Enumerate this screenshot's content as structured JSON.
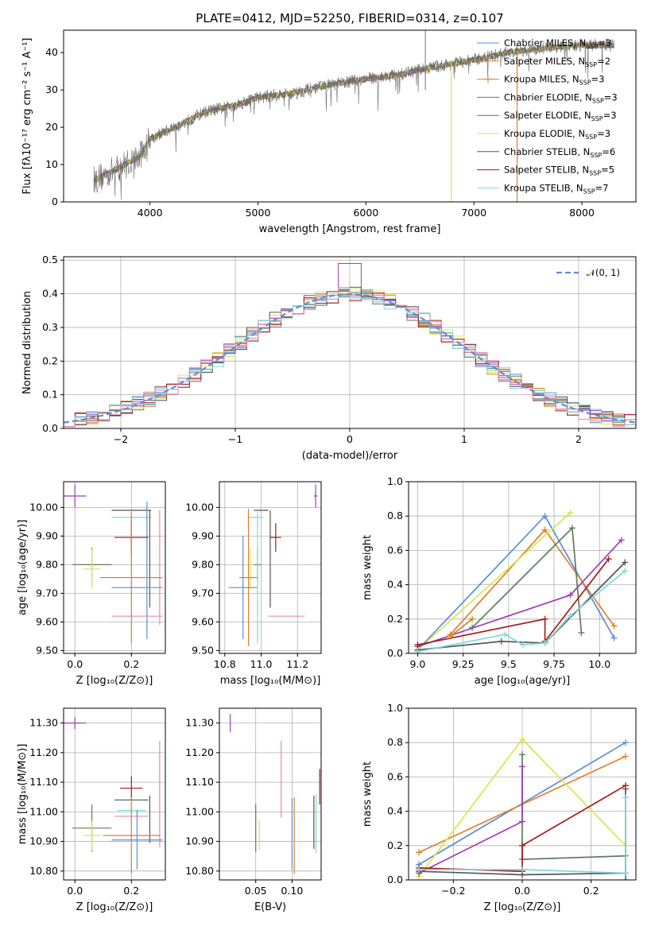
{
  "figure": {
    "title": "PLATE=0412, MJD=52250, FIBERID=0314, z=0.107"
  },
  "colors": {
    "Chabrier MILES": "#5b8ed6",
    "Salpeter MILES": "#e0802a",
    "Kroupa MILES": "#c8882e",
    "Chabrier ELODIE": "#5e7d5e",
    "Salpeter ELODIE": "#9b3fb5",
    "Kroupa ELODIE": "#d6e650",
    "Chabrier STELIB": "#555555",
    "Salpeter STELIB": "#a81c1c",
    "Kroupa STELIB": "#7fd8dc",
    "extra_pink": "#e887b5"
  },
  "chart_data": [
    {
      "id": "spectrum",
      "type": "line",
      "title": "PLATE=0412, MJD=52250, FIBERID=0314, z=0.107",
      "xlabel": "wavelength [Angstrom, rest frame]",
      "ylabel": "Flux [fλ10⁻¹⁷ erg cm⁻² s⁻¹ A⁻¹]",
      "xlim": [
        3200,
        8500
      ],
      "ylim": [
        0,
        46
      ],
      "xticks": [
        4000,
        5000,
        6000,
        7000,
        8000
      ],
      "yticks": [
        0,
        10,
        20,
        30,
        40
      ],
      "grid": false,
      "legend_position": "top-right",
      "legend": [
        {
          "label": "Chabrier MILES, N",
          "sub": "SSP",
          "tail": "=3",
          "color": "#5b8ed6",
          "marker": "none"
        },
        {
          "label": "Salpeter MILES, N",
          "sub": "SSP",
          "tail": "=2",
          "color": "#e0802a",
          "marker": "none"
        },
        {
          "label": "Kroupa MILES, N",
          "sub": "SSP",
          "tail": "=3",
          "color": "#c8882e",
          "marker": "plus"
        },
        {
          "label": "Chabrier ELODIE, N",
          "sub": "SSP",
          "tail": "=3",
          "color": "#5e7d5e",
          "marker": "none"
        },
        {
          "label": "Salpeter ELODIE, N",
          "sub": "SSP",
          "tail": "=3",
          "color": "#9b3fb5",
          "marker": "none"
        },
        {
          "label": "Kroupa ELODIE, N",
          "sub": "SSP",
          "tail": "=3",
          "color": "#d6e650",
          "marker": "none"
        },
        {
          "label": "Chabrier STELIB, N",
          "sub": "SSP",
          "tail": "=6",
          "color": "#555555",
          "marker": "none"
        },
        {
          "label": "Salpeter STELIB, N",
          "sub": "SSP",
          "tail": "=5",
          "color": "#a81c1c",
          "marker": "none"
        },
        {
          "label": "Kroupa STELIB, N",
          "sub": "SSP",
          "tail": "=7",
          "color": "#7fd8dc",
          "marker": "none"
        }
      ],
      "continuum": [
        [
          3500,
          6
        ],
        [
          3700,
          9
        ],
        [
          3900,
          12
        ],
        [
          4000,
          17
        ],
        [
          4300,
          21
        ],
        [
          4500,
          24
        ],
        [
          4800,
          26
        ],
        [
          5000,
          28
        ],
        [
          5300,
          29
        ],
        [
          5600,
          31
        ],
        [
          6000,
          33
        ],
        [
          6300,
          34
        ],
        [
          6600,
          36
        ],
        [
          7000,
          38
        ],
        [
          7300,
          40
        ],
        [
          7600,
          41
        ],
        [
          8000,
          42
        ],
        [
          8300,
          42
        ]
      ],
      "spectrum_range": [
        3480,
        8300
      ],
      "spikes": [
        {
          "x": 6790,
          "y_low": 0,
          "y_high": 38,
          "color": "#d6e650"
        },
        {
          "x": 7400,
          "y_low": 0,
          "y_high": 40,
          "color": "#e0802a"
        },
        {
          "x": 6550,
          "y_low": 30,
          "y_high": 46,
          "color": "#888888"
        }
      ]
    },
    {
      "id": "residual-hist",
      "type": "histogram",
      "xlabel": "(data-model)/error",
      "ylabel": "Normed distribution",
      "xlim": [
        -2.5,
        2.5
      ],
      "ylim": [
        0,
        0.51
      ],
      "xticks": [
        -2,
        -1,
        0,
        1,
        2
      ],
      "yticks": [
        0.0,
        0.1,
        0.2,
        0.3,
        0.4,
        0.5
      ],
      "grid": true,
      "legend_position": "top-right",
      "legend": [
        {
          "label": "𝒩(0, 1)",
          "color": "#5b8ed6",
          "style": "dashed"
        }
      ],
      "bin_width": 0.1,
      "reference_curve": {
        "name": "𝒩(0, 1)",
        "mean": 0,
        "sigma": 1
      }
    },
    {
      "id": "age-vs-z",
      "type": "errorbar",
      "xlabel": "Z [log₁₀(Z/Z⊙)]",
      "ylabel": "age  [log₁₀(age/yr)]",
      "xlim": [
        -0.04,
        0.32
      ],
      "ylim": [
        9.49,
        10.09
      ],
      "xticks": [
        0.0,
        0.2
      ],
      "yticks": [
        9.5,
        9.6,
        9.7,
        9.8,
        9.9,
        10.0
      ],
      "grid": true,
      "points": [
        {
          "x": 0.0,
          "y": 10.04,
          "xerr": 0.04,
          "yerr": 0.04,
          "color": "#9b3fb5"
        },
        {
          "x": 0.2,
          "y": 9.99,
          "xerr": 0.07,
          "yerr": 0.0,
          "color": "#555555"
        },
        {
          "x": 0.2,
          "y": 9.965,
          "xerr": 0.07,
          "yerr": 0.0,
          "color": "#7fd8dc"
        },
        {
          "x": 0.265,
          "y": 9.82,
          "xerr": 0.0,
          "yerr": 0.17,
          "color": "#555555"
        },
        {
          "x": 0.255,
          "y": 9.78,
          "xerr": 0.0,
          "yerr": 0.24,
          "color": "#5b8ed6"
        },
        {
          "x": 0.2,
          "y": 9.895,
          "xerr": 0.06,
          "yerr": 0.06,
          "color": "#a81c1c"
        },
        {
          "x": 0.3,
          "y": 9.79,
          "xerr": 0.0,
          "yerr": 0.2,
          "color": "#e887b5"
        },
        {
          "x": 0.06,
          "y": 9.8,
          "xerr": 0.07,
          "yerr": 0.06,
          "color": "#5e7d5e"
        },
        {
          "x": 0.06,
          "y": 9.785,
          "xerr": 0.03,
          "yerr": 0.07,
          "color": "#d6e650"
        },
        {
          "x": 0.2,
          "y": 9.755,
          "xerr": 0.11,
          "yerr": 0.23,
          "color": "#e0802a"
        },
        {
          "x": 0.22,
          "y": 9.72,
          "xerr": 0.09,
          "yerr": 0.0,
          "color": "#5b8ed6"
        },
        {
          "x": 0.22,
          "y": 9.62,
          "xerr": 0.09,
          "yerr": 0.0,
          "color": "#e887b5"
        }
      ]
    },
    {
      "id": "age-vs-mass",
      "type": "errorbar",
      "xlabel": "mass [log₁₀(M/M⊙)]",
      "ylabel": "",
      "xlim": [
        10.77,
        11.33
      ],
      "ylim": [
        9.49,
        10.09
      ],
      "xticks": [
        10.8,
        11.0,
        11.2
      ],
      "yticks": [
        9.5,
        9.6,
        9.7,
        9.8,
        9.9,
        10.0
      ],
      "grid": true,
      "points": [
        {
          "x": 11.3,
          "y": 10.04,
          "xerr": 0.01,
          "yerr": 0.04,
          "color": "#9b3fb5"
        },
        {
          "x": 11.0,
          "y": 9.99,
          "xerr": 0.04,
          "yerr": 0.0,
          "color": "#555555"
        },
        {
          "x": 11.05,
          "y": 9.82,
          "xerr": 0.0,
          "yerr": 0.17,
          "color": "#555555"
        },
        {
          "x": 10.97,
          "y": 9.965,
          "xerr": 0.04,
          "yerr": 0.0,
          "color": "#7fd8dc"
        },
        {
          "x": 11.08,
          "y": 9.895,
          "xerr": 0.03,
          "yerr": 0.05,
          "color": "#a81c1c"
        },
        {
          "x": 10.98,
          "y": 9.8,
          "xerr": 0.02,
          "yerr": 0.06,
          "color": "#5e7d5e"
        },
        {
          "x": 10.94,
          "y": 9.785,
          "xerr": 0.0,
          "yerr": 0.07,
          "color": "#d6e650"
        },
        {
          "x": 10.93,
          "y": 9.755,
          "xerr": 0.05,
          "yerr": 0.24,
          "color": "#e0802a"
        },
        {
          "x": 10.9,
          "y": 9.72,
          "xerr": 0.08,
          "yerr": 0.18,
          "color": "#5b8ed6"
        },
        {
          "x": 11.14,
          "y": 9.62,
          "xerr": 0.1,
          "yerr": 0.0,
          "color": "#e887b5"
        },
        {
          "x": 10.98,
          "y": 9.755,
          "xerr": 0.0,
          "yerr": 0.23,
          "color": "#7fd8dc"
        }
      ]
    },
    {
      "id": "weight-vs-age",
      "type": "line",
      "xlabel": "age  [log₁₀(age/yr)]",
      "ylabel": "mass weight",
      "xlim": [
        8.95,
        10.2
      ],
      "ylim": [
        0,
        1
      ],
      "xticks": [
        9.0,
        9.25,
        9.5,
        9.75,
        10.0
      ],
      "yticks": [
        0.0,
        0.2,
        0.4,
        0.6,
        0.8,
        1.0
      ],
      "grid": true,
      "series": [
        {
          "color": "#5b8ed6",
          "x": [
            9.0,
            9.7,
            10.08
          ],
          "y": [
            0.02,
            0.8,
            0.09
          ]
        },
        {
          "color": "#e0802a",
          "x": [
            9.18,
            9.7,
            10.08
          ],
          "y": [
            0.11,
            0.72,
            0.16
          ]
        },
        {
          "color": "#d6e650",
          "x": [
            9.0,
            9.84
          ],
          "y": [
            0.02,
            0.82
          ]
        },
        {
          "color": "#5e7d5e",
          "x": [
            9.3,
            9.85,
            9.9
          ],
          "y": [
            0.15,
            0.73,
            0.12
          ]
        },
        {
          "color": "#9b3fb5",
          "x": [
            9.0,
            9.84,
            10.12
          ],
          "y": [
            0.04,
            0.34,
            0.66
          ]
        },
        {
          "color": "#555555",
          "x": [
            9.0,
            9.46,
            9.7,
            10.14
          ],
          "y": [
            0.02,
            0.07,
            0.06,
            0.53
          ]
        },
        {
          "color": "#a81c1c",
          "x": [
            9.0,
            9.7,
            9.7,
            10.05
          ],
          "y": [
            0.05,
            0.2,
            0.07,
            0.55
          ]
        },
        {
          "color": "#7fd8dc",
          "x": [
            9.0,
            9.48,
            9.58,
            9.7,
            9.84,
            10.14
          ],
          "y": [
            0.01,
            0.11,
            0.05,
            0.06,
            0.22,
            0.48
          ]
        },
        {
          "color": "#c8882e",
          "x": [
            9.18,
            9.3
          ],
          "y": [
            0.1,
            0.2
          ]
        }
      ]
    },
    {
      "id": "mass-vs-z",
      "type": "errorbar",
      "xlabel": "Z [log₁₀(Z/Z⊙)]",
      "ylabel": "mass [log₁₀(M/M⊙)]",
      "xlim": [
        -0.04,
        0.32
      ],
      "ylim": [
        10.77,
        11.35
      ],
      "xticks": [
        0.0,
        0.2
      ],
      "yticks": [
        10.8,
        10.9,
        11.0,
        11.1,
        11.2,
        11.3
      ],
      "grid": true,
      "points": [
        {
          "x": 0.0,
          "y": 11.3,
          "xerr": 0.04,
          "yerr": 0.02,
          "color": "#9b3fb5"
        },
        {
          "x": 0.2,
          "y": 11.08,
          "xerr": 0.04,
          "yerr": 0.04,
          "color": "#a81c1c"
        },
        {
          "x": 0.2,
          "y": 11.04,
          "xerr": 0.06,
          "yerr": 0.0,
          "color": "#555555"
        },
        {
          "x": 0.3,
          "y": 11.06,
          "xerr": 0.0,
          "yerr": 0.18,
          "color": "#e887b5"
        },
        {
          "x": 0.2,
          "y": 10.985,
          "xerr": 0.06,
          "yerr": 0.0,
          "color": "#e887b5"
        },
        {
          "x": 0.2,
          "y": 11.005,
          "xerr": 0.05,
          "yerr": 0.0,
          "color": "#7fd8dc"
        },
        {
          "x": 0.265,
          "y": 10.975,
          "xerr": 0.0,
          "yerr": 0.08,
          "color": "#555555"
        },
        {
          "x": 0.06,
          "y": 10.945,
          "xerr": 0.07,
          "yerr": 0.08,
          "color": "#5e7d5e"
        },
        {
          "x": 0.06,
          "y": 10.92,
          "xerr": 0.03,
          "yerr": 0.05,
          "color": "#d6e650"
        },
        {
          "x": 0.2,
          "y": 10.92,
          "xerr": 0.1,
          "yerr": 0.13,
          "color": "#e0802a"
        },
        {
          "x": 0.22,
          "y": 10.905,
          "xerr": 0.09,
          "yerr": 0.1,
          "color": "#5b8ed6"
        }
      ]
    },
    {
      "id": "mass-vs-ebv",
      "type": "errorbar",
      "xlabel": "E(B-V)",
      "ylabel": "",
      "xlim": [
        0.0,
        0.14
      ],
      "ylim": [
        10.77,
        11.35
      ],
      "xticks": [
        0.05,
        0.1
      ],
      "yticks": [
        10.8,
        10.9,
        11.0,
        11.1,
        11.2,
        11.3
      ],
      "grid": true,
      "points": [
        {
          "x": 0.015,
          "y": 11.3,
          "xerr": 0.0,
          "yerr": 0.03,
          "color": "#9b3fb5"
        },
        {
          "x": 0.05,
          "y": 10.945,
          "xerr": 0.0,
          "yerr": 0.08,
          "color": "#5e7d5e"
        },
        {
          "x": 0.055,
          "y": 10.92,
          "xerr": 0.0,
          "yerr": 0.05,
          "color": "#d6e650"
        },
        {
          "x": 0.085,
          "y": 11.11,
          "xerr": 0.0,
          "yerr": 0.13,
          "color": "#e887b5"
        },
        {
          "x": 0.1,
          "y": 10.925,
          "xerr": 0.0,
          "yerr": 0.12,
          "color": "#5b8ed6"
        },
        {
          "x": 0.103,
          "y": 10.92,
          "xerr": 0.0,
          "yerr": 0.13,
          "color": "#e0802a"
        },
        {
          "x": 0.13,
          "y": 10.965,
          "xerr": 0.0,
          "yerr": 0.09,
          "color": "#555555"
        },
        {
          "x": 0.133,
          "y": 10.96,
          "xerr": 0.0,
          "yerr": 0.1,
          "color": "#7fd8dc"
        },
        {
          "x": 0.138,
          "y": 11.085,
          "xerr": 0.0,
          "yerr": 0.06,
          "color": "#a81c1c"
        }
      ]
    },
    {
      "id": "weight-vs-z",
      "type": "line",
      "xlabel": "Z [log₁₀(Z/Z⊙)]",
      "ylabel": "mass weight",
      "xlim": [
        -0.33,
        0.33
      ],
      "ylim": [
        0,
        1
      ],
      "xticks": [
        -0.2,
        0.0,
        0.2
      ],
      "yticks": [
        0.0,
        0.2,
        0.4,
        0.6,
        0.8,
        1.0
      ],
      "grid": true,
      "series": [
        {
          "color": "#5b8ed6",
          "x": [
            -0.3,
            0.3
          ],
          "y": [
            0.09,
            0.8
          ]
        },
        {
          "color": "#e0802a",
          "x": [
            -0.3,
            0.3
          ],
          "y": [
            0.16,
            0.72
          ]
        },
        {
          "color": "#d6e650",
          "x": [
            -0.3,
            0.0,
            0.3
          ],
          "y": [
            0.02,
            0.82,
            0.2
          ]
        },
        {
          "color": "#5e7d5e",
          "x": [
            0.0,
            0.0,
            0.3,
            0.3
          ],
          "y": [
            0.73,
            0.12,
            0.14,
            0.0
          ]
        },
        {
          "color": "#9b3fb5",
          "x": [
            -0.3,
            0.0,
            0.0
          ],
          "y": [
            0.04,
            0.34,
            0.66
          ]
        },
        {
          "color": "#555555",
          "x": [
            -0.3,
            0.0,
            0.3,
            0.3
          ],
          "y": [
            0.05,
            0.03,
            0.04,
            0.53
          ]
        },
        {
          "color": "#a81c1c",
          "x": [
            -0.3,
            0.0,
            0.0,
            0.3
          ],
          "y": [
            0.07,
            0.05,
            0.2,
            0.55
          ]
        },
        {
          "color": "#7fd8dc",
          "x": [
            -0.3,
            0.0,
            0.3,
            0.3
          ],
          "y": [
            0.06,
            0.06,
            0.04,
            0.48
          ]
        }
      ]
    }
  ]
}
